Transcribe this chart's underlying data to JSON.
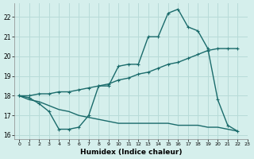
{
  "xlabel": "Humidex (Indice chaleur)",
  "background_color": "#d5efec",
  "grid_color": "#b8dbd8",
  "line_color": "#1a6b6b",
  "xlim": [
    -0.5,
    23
  ],
  "ylim": [
    15.8,
    22.7
  ],
  "yticks": [
    16,
    17,
    18,
    19,
    20,
    21,
    22
  ],
  "xticks": [
    0,
    1,
    2,
    3,
    4,
    5,
    6,
    7,
    8,
    9,
    10,
    11,
    12,
    13,
    14,
    15,
    16,
    17,
    18,
    19,
    20,
    21,
    22,
    23
  ],
  "line1_x": [
    0,
    1,
    2,
    3,
    4,
    5,
    6,
    7,
    8,
    9,
    10,
    11,
    12,
    13,
    14,
    15,
    16,
    17,
    18,
    19,
    20,
    21,
    22
  ],
  "line1_y": [
    18.0,
    17.9,
    17.6,
    17.2,
    16.3,
    16.3,
    16.4,
    17.0,
    18.5,
    18.5,
    19.5,
    19.6,
    19.6,
    21.0,
    21.0,
    22.2,
    22.4,
    21.5,
    21.3,
    20.4,
    17.8,
    16.5,
    16.2
  ],
  "line2_x": [
    0,
    1,
    2,
    3,
    4,
    5,
    6,
    7,
    8,
    9,
    10,
    11,
    12,
    13,
    14,
    15,
    16,
    17,
    18,
    19,
    20,
    21,
    22
  ],
  "line2_y": [
    18.0,
    18.0,
    18.1,
    18.1,
    18.2,
    18.2,
    18.3,
    18.4,
    18.5,
    18.6,
    18.8,
    18.9,
    19.1,
    19.2,
    19.4,
    19.6,
    19.7,
    19.9,
    20.1,
    20.3,
    20.4,
    20.4,
    20.4
  ],
  "line3_x": [
    0,
    1,
    2,
    3,
    4,
    5,
    6,
    7,
    8,
    9,
    10,
    11,
    12,
    13,
    14,
    15,
    16,
    17,
    18,
    19,
    20,
    21,
    22
  ],
  "line3_y": [
    18.0,
    17.8,
    17.7,
    17.5,
    17.3,
    17.2,
    17.0,
    16.9,
    16.8,
    16.7,
    16.6,
    16.6,
    16.6,
    16.6,
    16.6,
    16.6,
    16.5,
    16.5,
    16.5,
    16.4,
    16.4,
    16.3,
    16.2
  ]
}
